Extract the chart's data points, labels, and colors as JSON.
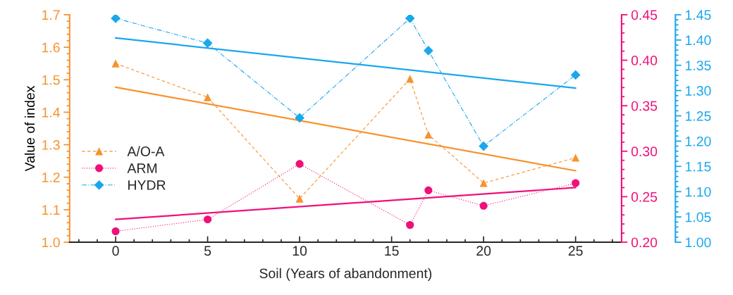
{
  "chart_data": {
    "type": "line",
    "xlabel": "Soil (Years of abandonment)",
    "ylabel": "Value of index",
    "xlim": [
      -2.5,
      27.5
    ],
    "xticks": [
      0,
      5,
      10,
      15,
      20,
      25
    ],
    "ylim": [
      1.0,
      1.7
    ],
    "yticks": [
      {
        "value": 1,
        "label": "1.0"
      },
      1.1,
      1.2,
      1.3,
      1.4,
      1.5,
      1.6,
      1.7
    ],
    "y2lim": [
      0.2,
      0.45
    ],
    "y2ticks": [
      {
        "value": 0.2,
        "label": "0.20"
      },
      0.25,
      {
        "value": 0.3,
        "label": "0.30"
      },
      0.35,
      {
        "value": 0.4,
        "label": "0.40"
      },
      0.45
    ],
    "y3lim": [
      1.0,
      1.45
    ],
    "y3ticks": [
      {
        "value": 1,
        "label": "1.00"
      },
      1.05,
      {
        "value": 1.1,
        "label": "1.10"
      },
      1.15,
      {
        "value": 1.2,
        "label": "1.20"
      },
      1.25,
      {
        "value": 1.3,
        "label": "1.30"
      },
      1.35,
      {
        "value": 1.4,
        "label": "1.40"
      },
      1.45
    ],
    "legend": "left",
    "series": [
      {
        "name": "A/O-A",
        "color": "#f7922f",
        "axis": "y",
        "marker": "triangle",
        "line_style": "dashed",
        "x": [
          0,
          5,
          10,
          16,
          17,
          20,
          25
        ],
        "values": [
          1.55,
          1.446,
          1.134,
          1.503,
          1.331,
          1.182,
          1.26
        ]
      },
      {
        "name": "ARM",
        "color": "#f0107a",
        "axis": "y2",
        "marker": "circle",
        "line_style": "dotted",
        "x": [
          0,
          5,
          10,
          16,
          17,
          20,
          25
        ],
        "values": [
          0.212,
          0.225,
          0.286,
          0.219,
          0.257,
          0.24,
          0.265
        ]
      },
      {
        "name": "HYDR",
        "color": "#1aa7ec",
        "axis": "y3",
        "marker": "diamond",
        "line_style": "dashdot",
        "x": [
          0,
          5,
          10,
          16,
          17,
          20,
          25
        ],
        "values": [
          1.443,
          1.394,
          1.246,
          1.443,
          1.379,
          1.19,
          1.331
        ]
      },
      {
        "color": "#f7922f",
        "axis": "y",
        "marker": "none",
        "line_style": "solid",
        "x": [
          0,
          25
        ],
        "values": [
          1.477,
          1.22
        ]
      },
      {
        "color": "#f0107a",
        "axis": "y2",
        "marker": "none",
        "line_style": "solid",
        "x": [
          0,
          25
        ],
        "values": [
          0.225,
          0.26
        ]
      },
      {
        "color": "#1aa7ec",
        "axis": "y3",
        "marker": "none",
        "line_style": "solid",
        "x": [
          0,
          25
        ],
        "values": [
          1.404,
          1.305
        ]
      }
    ]
  }
}
